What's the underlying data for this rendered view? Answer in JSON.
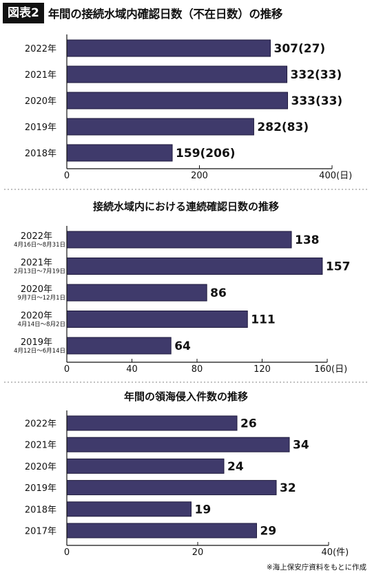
{
  "header": {
    "badge": "図表2",
    "title": "年間の接続水域内確認日数（不在日数）の推移"
  },
  "colors": {
    "bar": "#3f3a6b",
    "bar_stroke": "#1f1b3d",
    "axis": "#111111",
    "divider": "#9a9a9a"
  },
  "source": "※海上保安庁資料をもとに作成",
  "chart_data": [
    {
      "type": "bar",
      "orientation": "horizontal",
      "title": "",
      "categories": [
        "2022年",
        "2021年",
        "2020年",
        "2019年",
        "2018年"
      ],
      "values": [
        307,
        332,
        333,
        282,
        159
      ],
      "labels": [
        "307(27)",
        "332(33)",
        "333(33)",
        "282(83)",
        "159(206)"
      ],
      "absent_days": [
        27,
        33,
        33,
        83,
        206
      ],
      "xlim": [
        0,
        400
      ],
      "ticks": [
        0,
        200,
        400
      ],
      "tick_labels": [
        "0",
        "200",
        "400"
      ],
      "unit": "(日)",
      "grid": false
    },
    {
      "type": "bar",
      "orientation": "horizontal",
      "title": "接続水域内における連続確認日数の推移",
      "categories": [
        "2022年",
        "2021年",
        "2020年",
        "2020年",
        "2019年"
      ],
      "subcategories": [
        "4月16日～8月31日",
        "2月13日～7月19日",
        "9月7日～12月1日",
        "4月14日～8月2日",
        "4月12日～6月14日"
      ],
      "values": [
        138,
        157,
        86,
        111,
        64
      ],
      "labels": [
        "138",
        "157",
        "86",
        "111",
        "64"
      ],
      "xlim": [
        0,
        160
      ],
      "ticks": [
        0,
        40,
        80,
        120,
        160
      ],
      "tick_labels": [
        "0",
        "40",
        "80",
        "120",
        "160"
      ],
      "unit": "(日)",
      "grid": false
    },
    {
      "type": "bar",
      "orientation": "horizontal",
      "title": "年間の領海侵入件数の推移",
      "categories": [
        "2022年",
        "2021年",
        "2020年",
        "2019年",
        "2018年",
        "2017年"
      ],
      "values": [
        26,
        34,
        24,
        32,
        19,
        29
      ],
      "labels": [
        "26",
        "34",
        "24",
        "32",
        "19",
        "29"
      ],
      "xlim": [
        0,
        40
      ],
      "ticks": [
        0,
        20,
        40
      ],
      "tick_labels": [
        "0",
        "20",
        "40"
      ],
      "unit": "(件)",
      "grid": false
    }
  ]
}
